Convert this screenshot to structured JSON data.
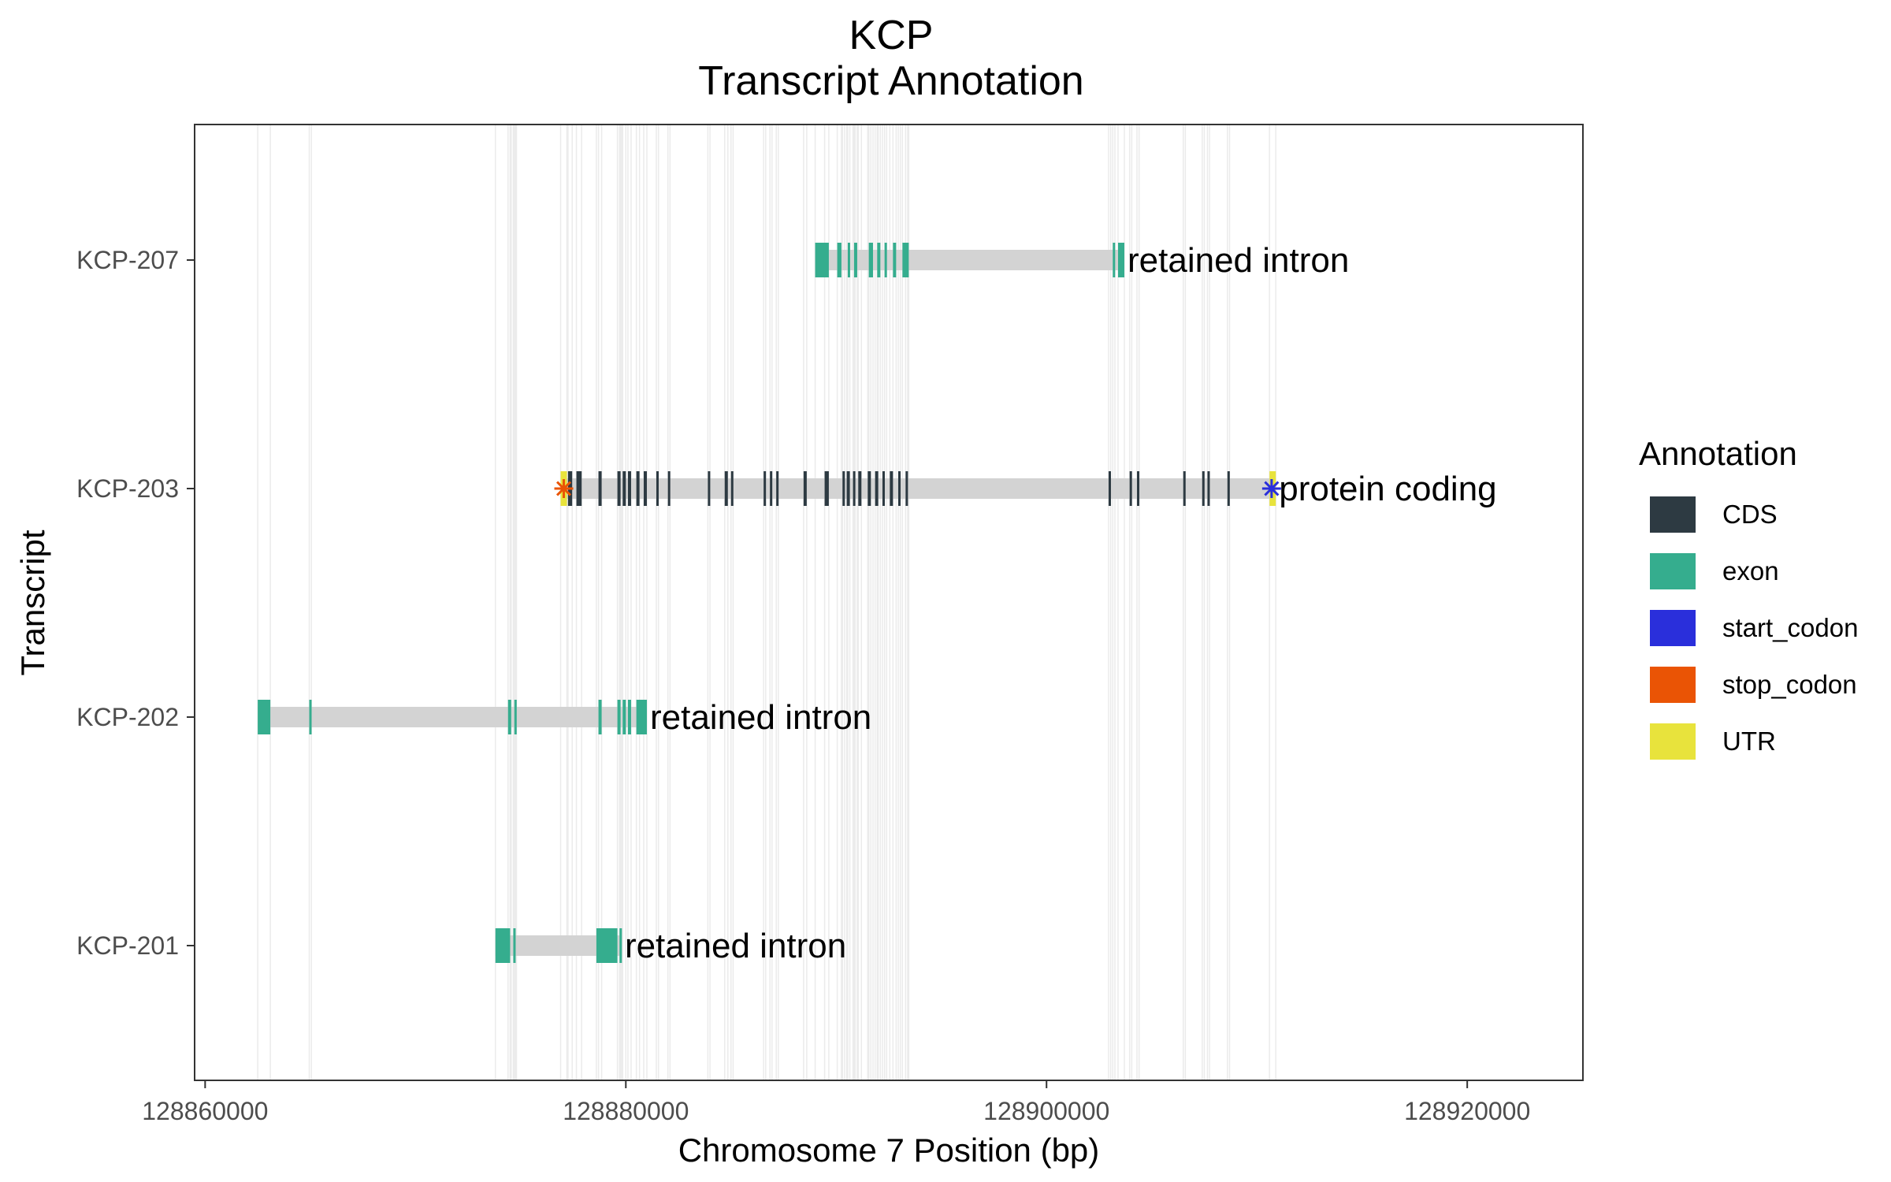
{
  "chart_data": {
    "type": "gene-track",
    "title": "KCP",
    "subtitle": "Transcript Annotation",
    "xlabel": "Chromosome 7 Position (bp)",
    "ylabel": "Transcript",
    "xlim": [
      128859500,
      128925500
    ],
    "x_ticks": [
      128860000,
      128880000,
      128900000,
      128920000
    ],
    "x_tick_labels": [
      "128860000",
      "128880000",
      "128900000",
      "128920000"
    ],
    "grid": "vertical lines at feature boundaries",
    "legend": {
      "title": "Annotation",
      "placement": "right",
      "entries": [
        {
          "name": "CDS",
          "color": "#2d3a42"
        },
        {
          "name": "exon",
          "color": "#35ad8e"
        },
        {
          "name": "start_codon",
          "color": "#2a2fdb"
        },
        {
          "name": "stop_codon",
          "color": "#ea5405"
        },
        {
          "name": "UTR",
          "color": "#e8e33c"
        }
      ]
    },
    "intron_color": "#d3d3d3",
    "grid_color": "#ebebeb",
    "transcripts": [
      {
        "name": "KCP-207",
        "label": "retained intron",
        "start": 128889000,
        "end": 128903700,
        "features": [
          {
            "type": "exon",
            "start": 128889000,
            "end": 128889650
          },
          {
            "type": "exon",
            "start": 128890050,
            "end": 128890250
          },
          {
            "type": "exon",
            "start": 128890550,
            "end": 128890650
          },
          {
            "type": "exon",
            "start": 128890850,
            "end": 128891000
          },
          {
            "type": "exon",
            "start": 128891550,
            "end": 128891750
          },
          {
            "type": "exon",
            "start": 128891950,
            "end": 128892100
          },
          {
            "type": "exon",
            "start": 128892300,
            "end": 128892400
          },
          {
            "type": "exon",
            "start": 128892700,
            "end": 128892850
          },
          {
            "type": "exon",
            "start": 128893150,
            "end": 128893450
          },
          {
            "type": "exon",
            "start": 128903150,
            "end": 128903250
          },
          {
            "type": "exon",
            "start": 128903400,
            "end": 128903700
          }
        ],
        "markers": []
      },
      {
        "name": "KCP-203",
        "label": "protein coding",
        "start": 128876900,
        "end": 128910900,
        "features": [
          {
            "type": "UTR",
            "start": 128876900,
            "end": 128877200
          },
          {
            "type": "CDS",
            "start": 128877250,
            "end": 128877450
          },
          {
            "type": "CDS",
            "start": 128877650,
            "end": 128877900
          },
          {
            "type": "CDS",
            "start": 128878700,
            "end": 128878850
          },
          {
            "type": "CDS",
            "start": 128879600,
            "end": 128879750
          },
          {
            "type": "CDS",
            "start": 128879850,
            "end": 128880000
          },
          {
            "type": "CDS",
            "start": 128880100,
            "end": 128880250
          },
          {
            "type": "CDS",
            "start": 128880500,
            "end": 128880650
          },
          {
            "type": "CDS",
            "start": 128880850,
            "end": 128881000
          },
          {
            "type": "CDS",
            "start": 128881450,
            "end": 128881550
          },
          {
            "type": "CDS",
            "start": 128882000,
            "end": 128882100
          },
          {
            "type": "CDS",
            "start": 128883900,
            "end": 128884000
          },
          {
            "type": "CDS",
            "start": 128884700,
            "end": 128884850
          },
          {
            "type": "CDS",
            "start": 128885000,
            "end": 128885100
          },
          {
            "type": "CDS",
            "start": 128886550,
            "end": 128886650
          },
          {
            "type": "CDS",
            "start": 128886850,
            "end": 128886950
          },
          {
            "type": "CDS",
            "start": 128887150,
            "end": 128887250
          },
          {
            "type": "CDS",
            "start": 128888450,
            "end": 128888600
          },
          {
            "type": "CDS",
            "start": 128889450,
            "end": 128889650
          },
          {
            "type": "CDS",
            "start": 128890300,
            "end": 128890400
          },
          {
            "type": "CDS",
            "start": 128890500,
            "end": 128890650
          },
          {
            "type": "CDS",
            "start": 128890800,
            "end": 128890900
          },
          {
            "type": "CDS",
            "start": 128891050,
            "end": 128891200
          },
          {
            "type": "CDS",
            "start": 128891500,
            "end": 128891650
          },
          {
            "type": "CDS",
            "start": 128891850,
            "end": 128892000
          },
          {
            "type": "CDS",
            "start": 128892200,
            "end": 128892300
          },
          {
            "type": "CDS",
            "start": 128892550,
            "end": 128892700
          },
          {
            "type": "CDS",
            "start": 128892950,
            "end": 128893050
          },
          {
            "type": "CDS",
            "start": 128893300,
            "end": 128893400
          },
          {
            "type": "CDS",
            "start": 128902950,
            "end": 128903050
          },
          {
            "type": "CDS",
            "start": 128903950,
            "end": 128904050
          },
          {
            "type": "CDS",
            "start": 128904300,
            "end": 128904400
          },
          {
            "type": "CDS",
            "start": 128906500,
            "end": 128906600
          },
          {
            "type": "CDS",
            "start": 128907400,
            "end": 128907500
          },
          {
            "type": "CDS",
            "start": 128907650,
            "end": 128907750
          },
          {
            "type": "CDS",
            "start": 128908600,
            "end": 128908700
          },
          {
            "type": "UTR",
            "start": 128910600,
            "end": 128910900
          }
        ],
        "markers": [
          {
            "type": "stop_codon",
            "position": 128877050
          },
          {
            "type": "start_codon",
            "position": 128910700
          }
        ]
      },
      {
        "name": "KCP-202",
        "label": "retained intron",
        "start": 128862500,
        "end": 128881000,
        "features": [
          {
            "type": "exon",
            "start": 128862500,
            "end": 128863100
          },
          {
            "type": "exon",
            "start": 128864950,
            "end": 128865050
          },
          {
            "type": "exon",
            "start": 128874400,
            "end": 128874550
          },
          {
            "type": "exon",
            "start": 128874700,
            "end": 128874800
          },
          {
            "type": "exon",
            "start": 128878700,
            "end": 128878850
          },
          {
            "type": "exon",
            "start": 128879600,
            "end": 128879750
          },
          {
            "type": "exon",
            "start": 128879850,
            "end": 128880000
          },
          {
            "type": "exon",
            "start": 128880100,
            "end": 128880250
          },
          {
            "type": "exon",
            "start": 128880500,
            "end": 128881000
          }
        ],
        "markers": []
      },
      {
        "name": "KCP-201",
        "label": "retained intron",
        "start": 128873800,
        "end": 128879800,
        "features": [
          {
            "type": "exon",
            "start": 128873800,
            "end": 128874500
          },
          {
            "type": "exon",
            "start": 128874650,
            "end": 128874750
          },
          {
            "type": "exon",
            "start": 128878600,
            "end": 128879600
          },
          {
            "type": "exon",
            "start": 128879700,
            "end": 128879800
          }
        ],
        "markers": []
      }
    ]
  }
}
